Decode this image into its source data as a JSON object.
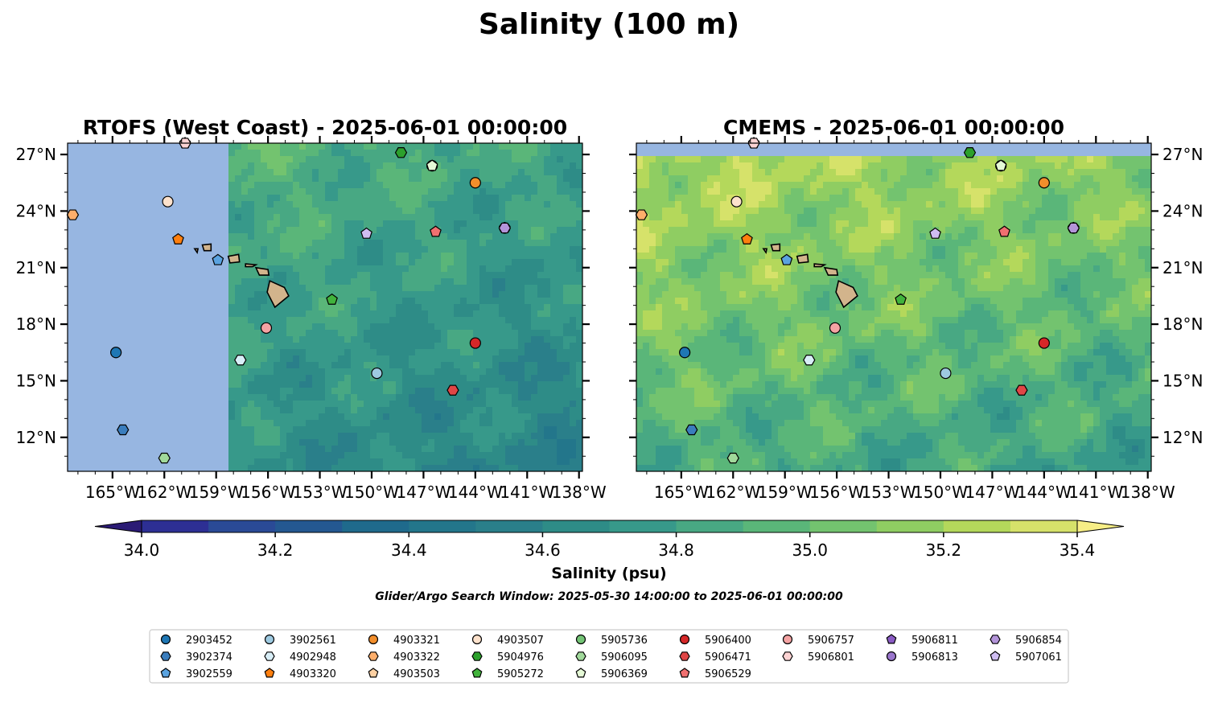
{
  "figure": {
    "suptitle": "Salinity (100 m)",
    "colorbar": {
      "label": "Salinity (psu)",
      "min": 34.0,
      "max": 35.4,
      "step": 0.1,
      "ticks": [
        "34.0",
        "34.2",
        "34.4",
        "34.6",
        "34.8",
        "35.0",
        "35.2",
        "35.4"
      ],
      "colors": [
        "#2b1b75",
        "#2d2f94",
        "#2a4a96",
        "#245891",
        "#1f6a8c",
        "#23768b",
        "#2a7f8a",
        "#2e8c87",
        "#37998a",
        "#48a883",
        "#5ab679",
        "#73c36f",
        "#8fcd62",
        "#b4d85b",
        "#d6e26a",
        "#f7ee86"
      ]
    },
    "search_window": "Glider/Argo Search Window: 2025-05-30 14:00:00 to 2025-06-01 00:00:00",
    "xticks": [
      "165°W",
      "162°W",
      "159°W",
      "156°W",
      "153°W",
      "150°W",
      "147°W",
      "144°W",
      "141°W",
      "138°W"
    ],
    "yticks": [
      "12°N",
      "15°N",
      "18°N",
      "21°N",
      "24°N",
      "27°N"
    ]
  },
  "chart_data": [
    {
      "type": "scatter",
      "title": "RTOFS (West Coast) - 2025-06-01 00:00:00",
      "xlim": [
        -167.6,
        -137.8
      ],
      "ylim": [
        10.2,
        27.6
      ],
      "model_coverage_lon_min": -158.2,
      "ocean_pattern": "mid"
    },
    {
      "type": "scatter",
      "title": "CMEMS - 2025-06-01 00:00:00",
      "xlim": [
        -167.6,
        -137.8
      ],
      "ylim": [
        10.2,
        27.6
      ],
      "model_coverage_lat_max": 27.0,
      "ocean_pattern": "high"
    }
  ],
  "floats": [
    {
      "id": "2903452",
      "lon": -164.8,
      "lat": 16.5,
      "color": "#1f77b4",
      "marker": "circle"
    },
    {
      "id": "3902374",
      "lon": -164.4,
      "lat": 12.4,
      "color": "#3a7dbd",
      "marker": "hexagon"
    },
    {
      "id": "3902559",
      "lon": -158.9,
      "lat": 21.4,
      "color": "#5aa3e0",
      "marker": "pentagon"
    },
    {
      "id": "3902561",
      "lon": -149.7,
      "lat": 15.4,
      "color": "#9ecae1",
      "marker": "circle"
    },
    {
      "id": "4902948",
      "lon": -157.6,
      "lat": 16.1,
      "color": "#d8eef7",
      "marker": "hexagon"
    },
    {
      "id": "4903320",
      "lon": -161.2,
      "lat": 22.5,
      "color": "#ff7f0e",
      "marker": "pentagon"
    },
    {
      "id": "4903321",
      "lon": -144.0,
      "lat": 25.5,
      "color": "#f28e2b",
      "marker": "circle"
    },
    {
      "id": "4903322",
      "lon": -167.3,
      "lat": 23.8,
      "color": "#fdae6b",
      "marker": "hexagon"
    },
    {
      "id": "4903503",
      "lon": -160.8,
      "lat": 27.6,
      "color": "#fdd0a2",
      "marker": "pentagon"
    },
    {
      "id": "4903507",
      "lon": -161.8,
      "lat": 24.5,
      "color": "#fde2cc",
      "marker": "circle"
    },
    {
      "id": "5904976",
      "lon": -148.3,
      "lat": 27.1,
      "color": "#2ca02c",
      "marker": "hexagon"
    },
    {
      "id": "5905272",
      "lon": -152.3,
      "lat": 19.3,
      "color": "#41b33c",
      "marker": "pentagon"
    },
    {
      "id": "5905736",
      "lon": -146.5,
      "lat": 26.4,
      "color": "#74c476",
      "marker": "circle"
    },
    {
      "id": "5906095",
      "lon": -162.0,
      "lat": 10.9,
      "color": "#a1d99b",
      "marker": "hexagon"
    },
    {
      "id": "5906369",
      "lon": -146.5,
      "lat": 26.4,
      "color": "#e5f9d6",
      "marker": "pentagon"
    },
    {
      "id": "5906400",
      "lon": -144.0,
      "lat": 17.0,
      "color": "#d62728",
      "marker": "circle"
    },
    {
      "id": "5906471",
      "lon": -145.3,
      "lat": 14.5,
      "color": "#e04646",
      "marker": "hexagon"
    },
    {
      "id": "5906529",
      "lon": -146.3,
      "lat": 22.9,
      "color": "#f07070",
      "marker": "pentagon"
    },
    {
      "id": "5906757",
      "lon": -156.1,
      "lat": 17.8,
      "color": "#f4a3a3",
      "marker": "circle"
    },
    {
      "id": "5906801",
      "lon": -160.8,
      "lat": 27.6,
      "color": "#fcd3d3",
      "marker": "hexagon"
    },
    {
      "id": "5906811",
      "lon": -142.3,
      "lat": 23.1,
      "color": "#8a5bc4",
      "marker": "pentagon"
    },
    {
      "id": "5906813",
      "lon": -142.3,
      "lat": 23.1,
      "color": "#9a76cc",
      "marker": "circle"
    },
    {
      "id": "5906854",
      "lon": -142.3,
      "lat": 23.1,
      "color": "#b394d9",
      "marker": "hexagon"
    },
    {
      "id": "5907061",
      "lon": -150.3,
      "lat": 22.8,
      "color": "#cfbdf2",
      "marker": "pentagon"
    }
  ],
  "legend_order": [
    [
      "2903452",
      "3902374",
      "3902559"
    ],
    [
      "3902561",
      "4902948",
      "4903320"
    ],
    [
      "4903321",
      "4903322",
      "4903503"
    ],
    [
      "4903507",
      "5904976",
      "5905272"
    ],
    [
      "5905736",
      "5906095",
      "5906369"
    ],
    [
      "5906400",
      "5906471",
      "5906529"
    ],
    [
      "5906757",
      "5906801"
    ],
    [
      "5906811",
      "5906813"
    ],
    [
      "5906854",
      "5907061"
    ]
  ]
}
